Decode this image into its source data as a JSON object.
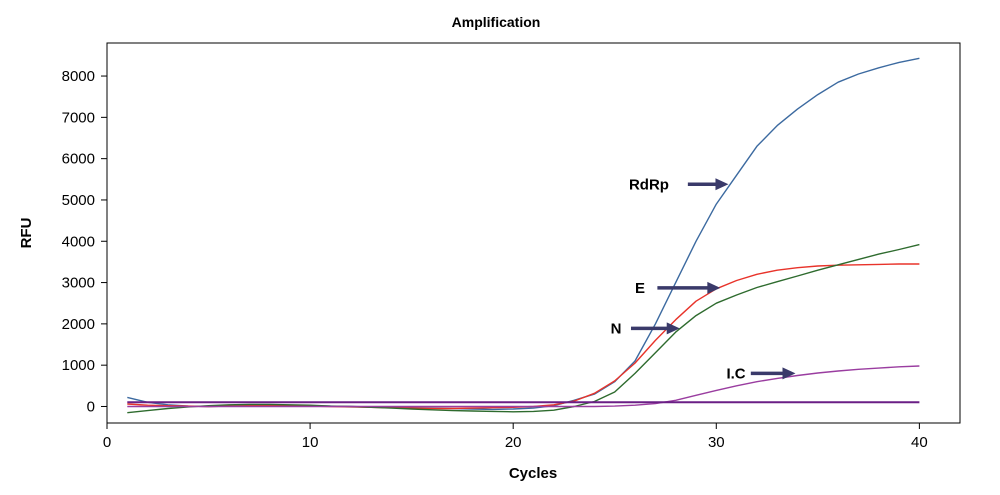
{
  "chart_data": {
    "type": "line",
    "title": "Amplification",
    "xlabel": "Cycles",
    "ylabel": "RFU",
    "xlim": [
      0,
      42
    ],
    "ylim": [
      -400,
      8800
    ],
    "xticks": [
      0,
      10,
      20,
      30,
      40
    ],
    "yticks": [
      0,
      1000,
      2000,
      3000,
      4000,
      5000,
      6000,
      7000,
      8000
    ],
    "grid": false,
    "legend": "none",
    "x": [
      1,
      2,
      3,
      4,
      5,
      6,
      7,
      8,
      9,
      10,
      11,
      12,
      13,
      14,
      15,
      16,
      17,
      18,
      19,
      20,
      21,
      22,
      23,
      24,
      25,
      26,
      27,
      28,
      29,
      30,
      31,
      32,
      33,
      34,
      35,
      36,
      37,
      38,
      39,
      40
    ],
    "series": [
      {
        "color": "#3c6aa0",
        "values": [
          220,
          100,
          40,
          10,
          0,
          10,
          20,
          30,
          30,
          20,
          10,
          0,
          -10,
          -20,
          -30,
          -40,
          -50,
          -60,
          -70,
          -60,
          -40,
          20,
          150,
          300,
          600,
          1100,
          2000,
          3000,
          4000,
          4900,
          5600,
          6300,
          6800,
          7200,
          7550,
          7850,
          8050,
          8200,
          8330,
          8430
        ]
      },
      {
        "color": "#e8332a",
        "values": [
          60,
          30,
          20,
          10,
          0,
          10,
          20,
          20,
          20,
          10,
          0,
          -10,
          -20,
          -30,
          -40,
          -50,
          -50,
          -40,
          -30,
          -20,
          0,
          40,
          130,
          320,
          620,
          1050,
          1600,
          2100,
          2550,
          2850,
          3050,
          3200,
          3300,
          3360,
          3400,
          3420,
          3430,
          3440,
          3450,
          3450
        ]
      },
      {
        "color": "#2e6b2e",
        "values": [
          -150,
          -100,
          -50,
          -10,
          20,
          40,
          50,
          50,
          40,
          30,
          10,
          0,
          -20,
          -40,
          -60,
          -80,
          -100,
          -110,
          -120,
          -130,
          -120,
          -90,
          0,
          120,
          350,
          800,
          1300,
          1800,
          2200,
          2500,
          2700,
          2880,
          3020,
          3160,
          3300,
          3430,
          3560,
          3690,
          3800,
          3920
        ]
      },
      {
        "color": "#9a3da0",
        "values": [
          0,
          0,
          0,
          0,
          0,
          0,
          0,
          0,
          0,
          0,
          0,
          0,
          0,
          0,
          0,
          0,
          0,
          0,
          0,
          0,
          0,
          0,
          0,
          0,
          10,
          30,
          70,
          150,
          270,
          390,
          500,
          600,
          680,
          750,
          810,
          860,
          900,
          930,
          960,
          980
        ]
      },
      {
        "color": "#6a1f85",
        "values": [
          100,
          100,
          100,
          100,
          100,
          100,
          100,
          100,
          100,
          100,
          100,
          100,
          100,
          100,
          100,
          100,
          100,
          100,
          100,
          100,
          100,
          100,
          100,
          100,
          100,
          100,
          100,
          100,
          100,
          100,
          100,
          100,
          100,
          100,
          100,
          100,
          100,
          100,
          100,
          100
        ]
      }
    ],
    "annotations": [
      {
        "text": "RdRp",
        "tx": 25.7,
        "ty": 5380,
        "ax0": 28.6,
        "ax1": 30.6,
        "ay": 5380,
        "color": "#3a3a6a"
      },
      {
        "text": "E",
        "tx": 26.0,
        "ty": 2870,
        "ax0": 27.1,
        "ax1": 30.2,
        "ay": 2870,
        "color": "#3a3a6a"
      },
      {
        "text": "N",
        "tx": 24.8,
        "ty": 1890,
        "ax0": 25.8,
        "ax1": 28.2,
        "ay": 1890,
        "color": "#3a3a6a"
      },
      {
        "text": "I.C",
        "tx": 30.5,
        "ty": 800,
        "ax0": 31.7,
        "ax1": 33.9,
        "ay": 800,
        "color": "#3a3a6a"
      }
    ]
  }
}
